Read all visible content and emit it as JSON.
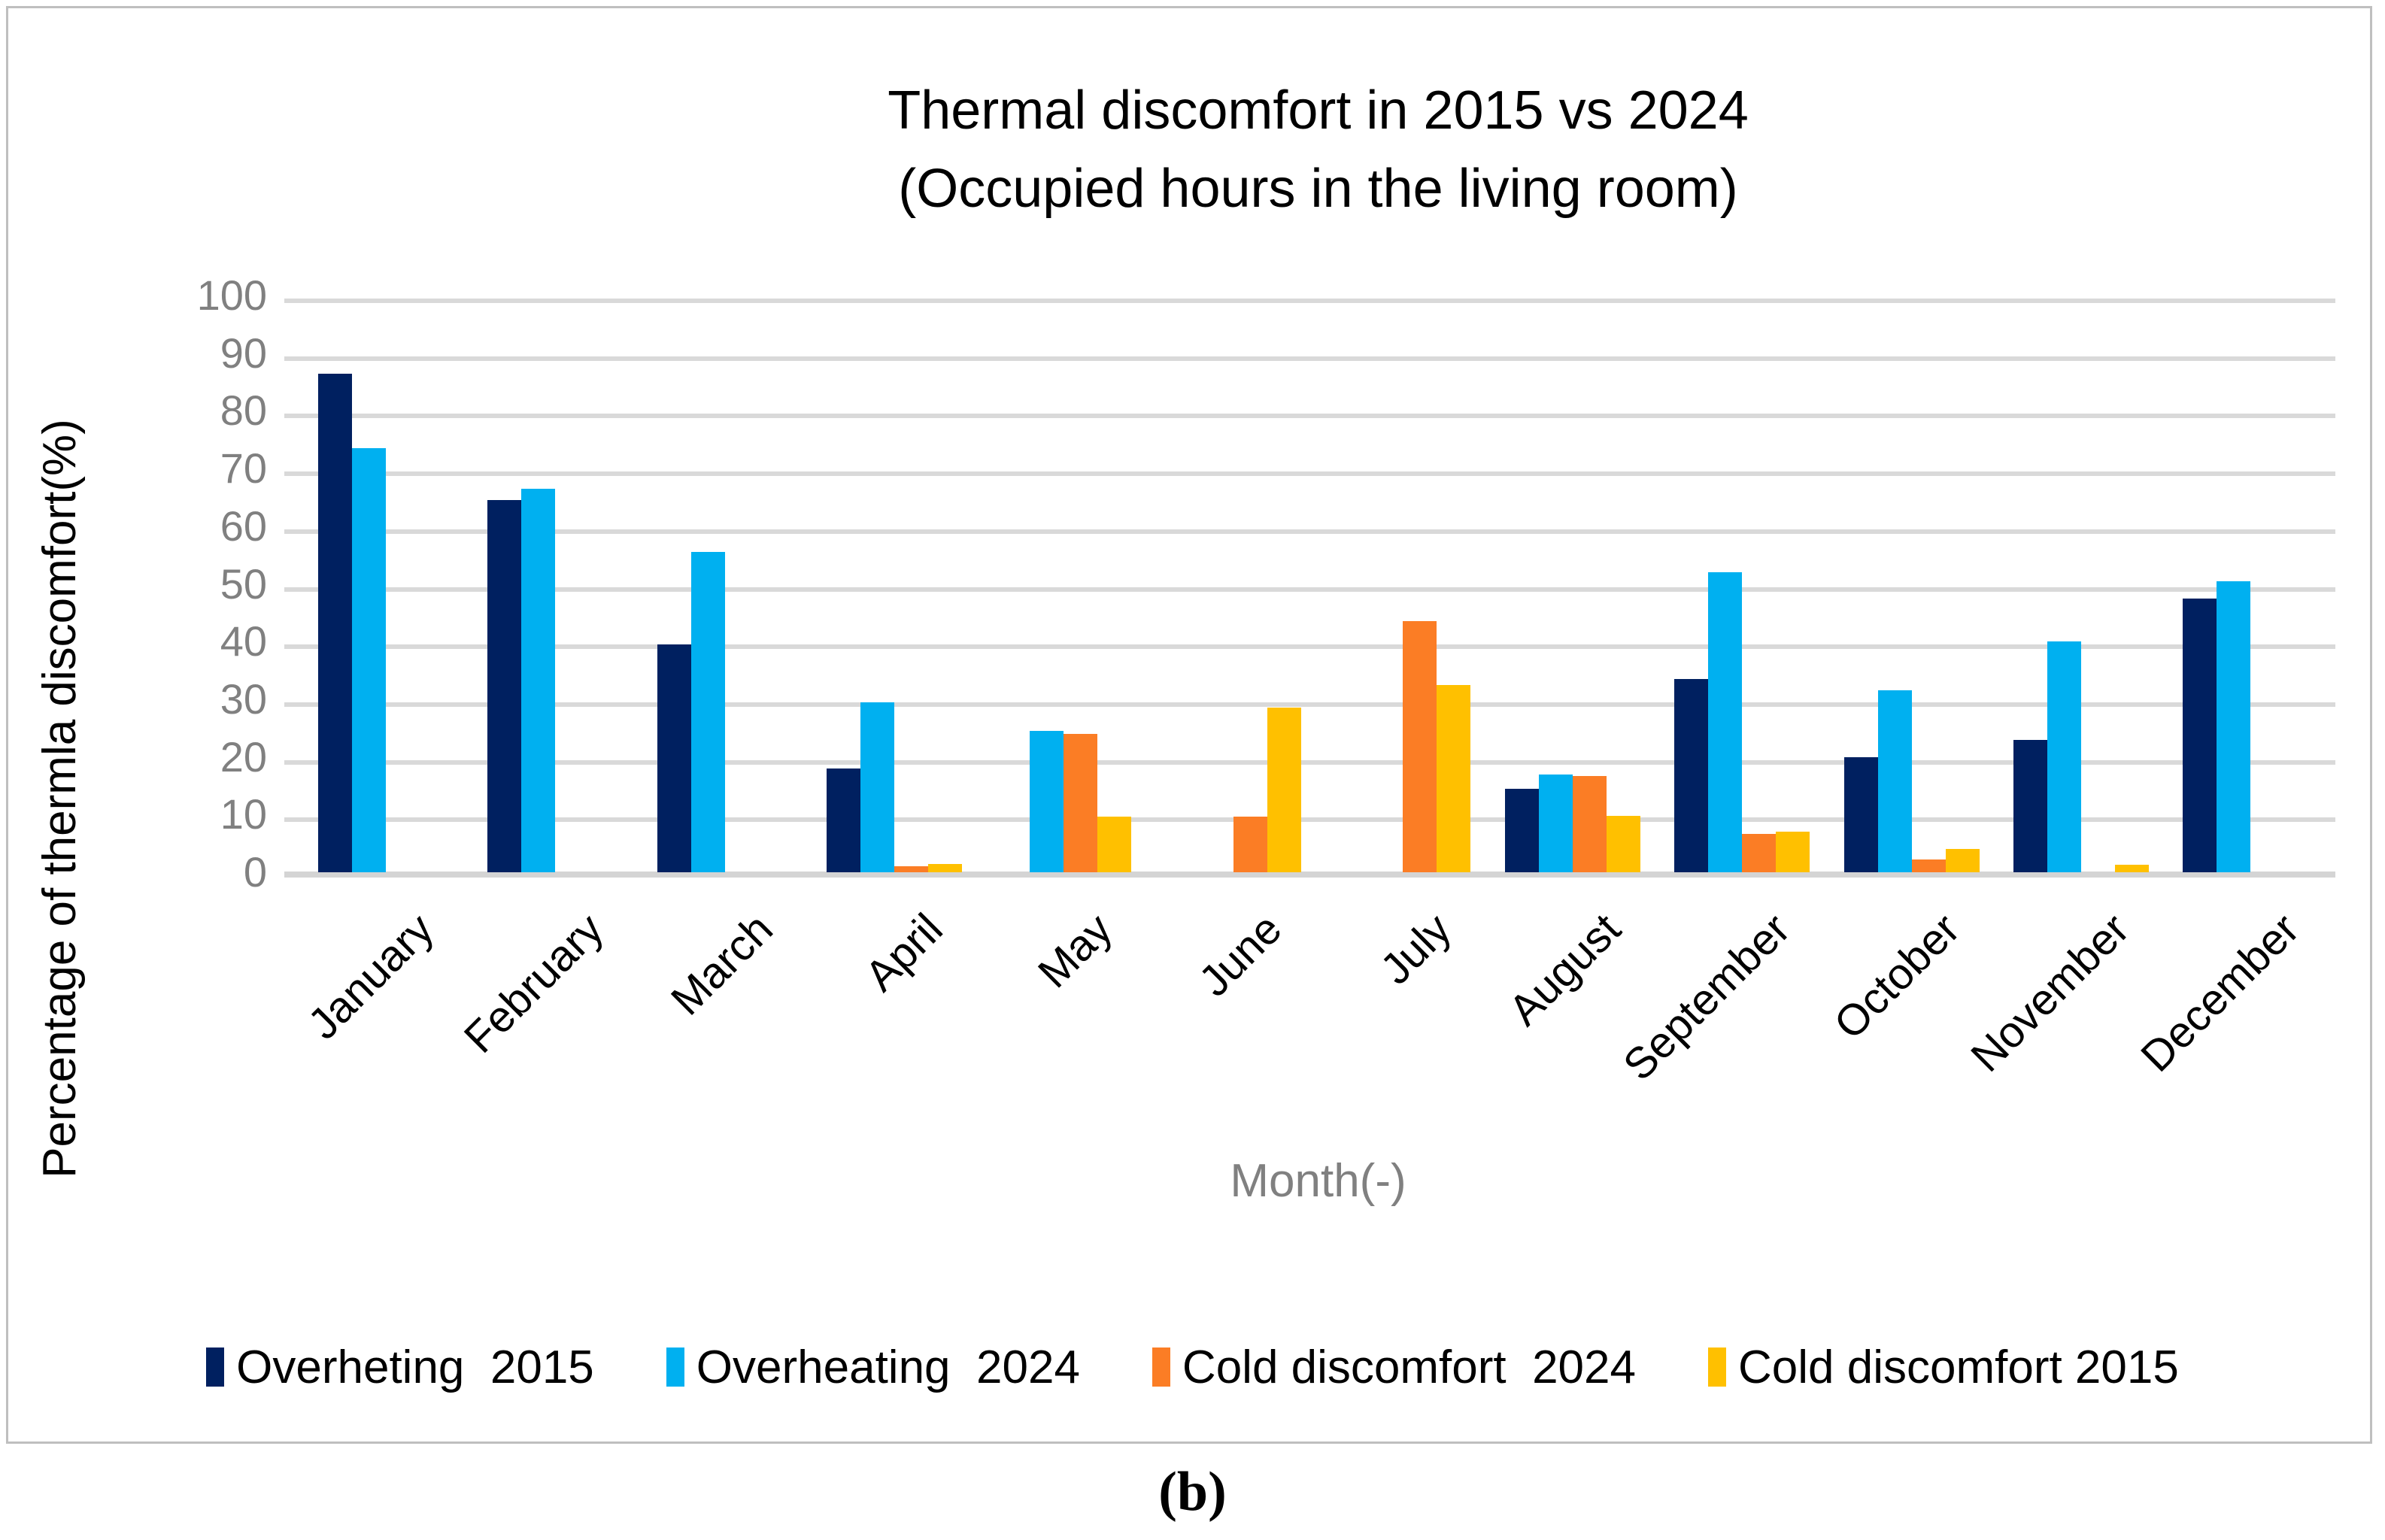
{
  "figure": {
    "title_line1": "Thermal discomfort in 2015 vs 2024",
    "title_line2": "(Occupied hours in the living room)",
    "caption": "(b)"
  },
  "axes": {
    "y_title": "Percentage of thermla discomfort(%)",
    "x_title": "Month(-)",
    "y_tick_labels": [
      "0",
      "10",
      "20",
      "30",
      "40",
      "50",
      "60",
      "70",
      "80",
      "90",
      "100"
    ]
  },
  "legend": {
    "items": [
      {
        "key": "overheating-2015",
        "label": "Overheting  2015",
        "color": "#002060"
      },
      {
        "key": "overheating-2024",
        "label": "Overheating  2024",
        "color": "#00B0F0"
      },
      {
        "key": "cold-discomfort-2024",
        "label": "Cold discomfort  2024",
        "color": "#FB7D25"
      },
      {
        "key": "cold-discomfort-2015",
        "label": "Cold discomfort 2015",
        "color": "#FFC000"
      }
    ]
  },
  "chart_data": {
    "type": "bar",
    "title": "Thermal discomfort in 2015 vs 2024 (Occupied hours in the living room)",
    "xlabel": "Month(-)",
    "ylabel": "Percentage of thermla discomfort(%)",
    "ylim": [
      0,
      100
    ],
    "y_tick_step": 10,
    "grid": true,
    "legend_position": "bottom",
    "categories": [
      "January",
      "February",
      "March",
      "April",
      "May",
      "June",
      "July",
      "August",
      "September",
      "October",
      "November",
      "December"
    ],
    "series": [
      {
        "name": "Overheting  2015",
        "key": "overheating-2015",
        "color": "#002060",
        "values": [
          86.5,
          64.5,
          39.5,
          18,
          0,
          0,
          0,
          14.5,
          33.5,
          20,
          23,
          47.5
        ]
      },
      {
        "name": "Overheating  2024",
        "key": "overheating-2024",
        "color": "#00B0F0",
        "values": [
          73.5,
          66.5,
          55.5,
          29.5,
          24.5,
          0,
          0,
          17,
          52,
          31.5,
          40,
          50.5
        ]
      },
      {
        "name": "Cold discomfort  2024",
        "key": "cold-discomfort-2024",
        "color": "#FB7D25",
        "values": [
          0,
          0,
          0,
          1,
          24,
          9.6,
          43.5,
          16.7,
          6.7,
          2.2,
          0,
          0
        ]
      },
      {
        "name": "Cold discomfort 2015",
        "key": "cold-discomfort-2015",
        "color": "#FFC000",
        "values": [
          0,
          0,
          0,
          1.5,
          9.6,
          28.5,
          32.5,
          9.8,
          7,
          4,
          1.3,
          0
        ]
      }
    ]
  },
  "colors": {
    "gridline": "#D9D9D9",
    "axis_line": "#D4D4D4",
    "tick_label": "#808080",
    "x_axis_title": "#808080",
    "figure_border": "#BFBFBF"
  }
}
